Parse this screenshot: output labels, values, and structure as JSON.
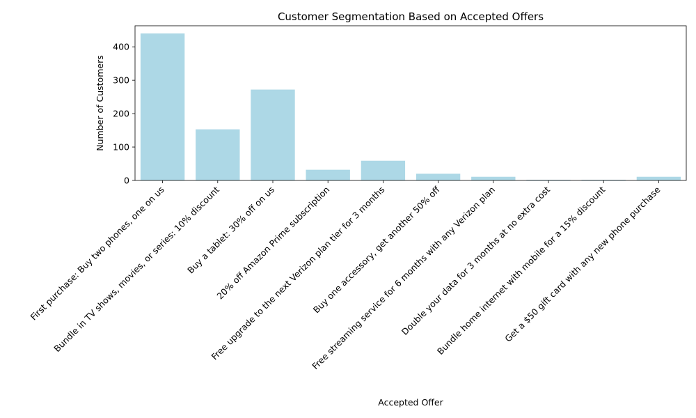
{
  "chart_data": {
    "type": "bar",
    "title": "Customer Segmentation Based on Accepted Offers",
    "xlabel": "Accepted Offer",
    "ylabel": "Number of Customers",
    "categories": [
      "First purchase: Buy two phones, one on us",
      "Bundle in TV shows, movies, or series: 10% discount",
      "Buy a tablet: 30% off on us",
      "20% off Amazon Prime subscription",
      "Free upgrade to the next Verizon plan tier for 3 months",
      "Buy one accessory, get another 50% off",
      "Free streaming service for 6 months with any Verizon plan",
      "Double your data for 3 months at no extra cost",
      "Bundle home internet with mobile for a 15% discount",
      "Get a $50 gift card with any new phone purchase"
    ],
    "values": [
      440,
      153,
      272,
      32,
      59,
      20,
      11,
      2,
      2,
      11
    ],
    "ylim": [
      0,
      463
    ],
    "yticks": [
      0,
      100,
      200,
      300,
      400
    ],
    "bar_color": "#add8e6",
    "grid": false,
    "legend": "none"
  }
}
